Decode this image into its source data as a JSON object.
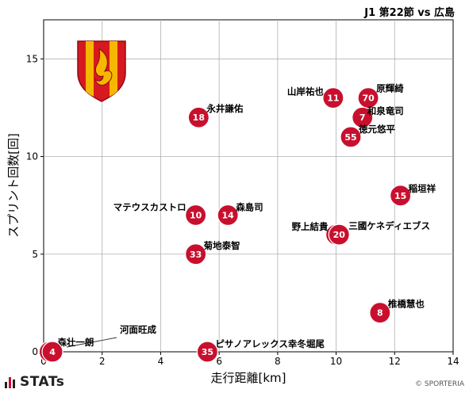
{
  "header": {
    "title": "J1 第22節 vs 広島"
  },
  "footer": {
    "brand": "STATs",
    "copyright": "© SPORTERIA"
  },
  "colors": {
    "point": "#c8102e",
    "grid": "#b0b0b0",
    "emblem_red": "#d7191f",
    "emblem_gold": "#f6b700"
  },
  "icons": {
    "team_emblem": "team-emblem-icon",
    "stats_logo": "stats-logo-icon"
  },
  "chart_data": {
    "type": "scatter",
    "title": "J1 第22節 vs 広島",
    "xlabel": "走行距離[km]",
    "ylabel": "スプリント回数[回]",
    "xlim": [
      0,
      14
    ],
    "ylim": [
      0,
      17
    ],
    "xticks": [
      0,
      2,
      4,
      6,
      8,
      10,
      12,
      14
    ],
    "yticks": [
      0,
      5,
      10,
      15
    ],
    "grid": true,
    "points": [
      {
        "number": "70",
        "name": "原輝綺",
        "x": 11.1,
        "y": 13
      },
      {
        "number": "11",
        "name": "山岸祐也",
        "x": 9.9,
        "y": 13
      },
      {
        "number": "7",
        "name": "和泉竜司",
        "x": 10.9,
        "y": 12
      },
      {
        "number": "18",
        "name": "永井謙佑",
        "x": 5.3,
        "y": 12
      },
      {
        "number": "55",
        "name": "徳元悠平",
        "x": 10.5,
        "y": 11
      },
      {
        "number": "15",
        "name": "稲垣祥",
        "x": 12.2,
        "y": 8
      },
      {
        "number": "10",
        "name": "マテウスカストロ",
        "x": 5.2,
        "y": 7
      },
      {
        "number": "14",
        "name": "森島司",
        "x": 6.3,
        "y": 7
      },
      {
        "number": "2",
        "name": "野上結貴",
        "x": 10.0,
        "y": 6
      },
      {
        "number": "20",
        "name": "三國ケネディエブス",
        "x": 10.1,
        "y": 6
      },
      {
        "number": "33",
        "name": "菊地泰智",
        "x": 5.2,
        "y": 5
      },
      {
        "number": "8",
        "name": "椎橋慧也",
        "x": 11.5,
        "y": 2
      },
      {
        "number": "35",
        "name": "ピサノアレックス幸冬堀尾",
        "x": 5.6,
        "y": 0
      },
      {
        "number": "4",
        "name": "森壮一朗",
        "x": 0.2,
        "y": 0
      },
      {
        "number": "4",
        "name": "河面旺成",
        "x": 0.3,
        "y": 0
      }
    ]
  }
}
